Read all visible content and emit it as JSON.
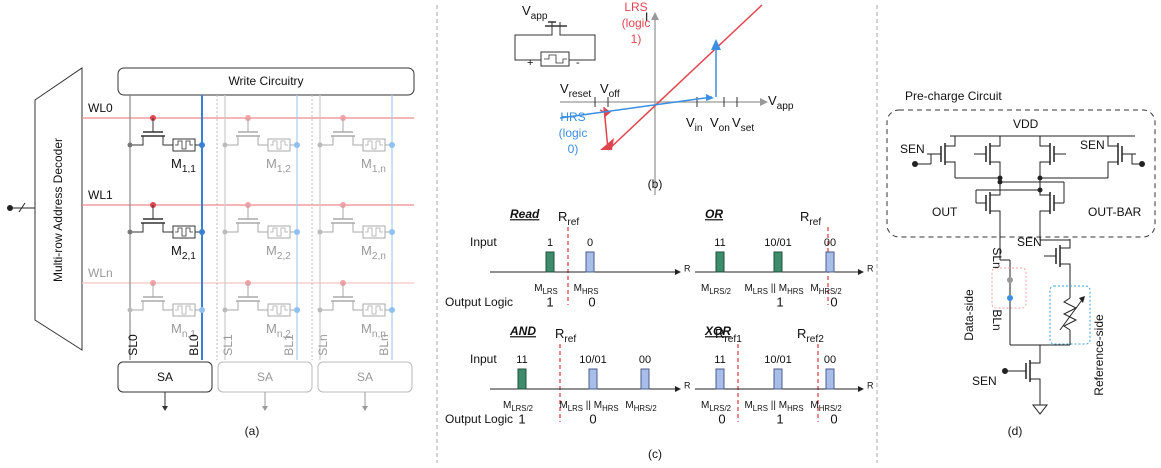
{
  "panel_a": {
    "write_circuitry": "Write Circuitry",
    "decoder": "Multi-row Address Decoder",
    "word_lines": [
      "WL0",
      "WL1",
      "WLn"
    ],
    "cells": [
      [
        [
          "M",
          "1,1"
        ],
        [
          "M",
          "1,2"
        ],
        [
          "M",
          "1,n"
        ]
      ],
      [
        [
          "M",
          "2,1"
        ],
        [
          "M",
          "2,2"
        ],
        [
          "M",
          "2,n"
        ]
      ],
      [
        [
          "M",
          "n,1"
        ],
        [
          "M",
          "n,2"
        ],
        [
          "M",
          "n,n"
        ]
      ]
    ],
    "bit_lines": [
      [
        "SL0",
        "BL0"
      ],
      [
        "SL1",
        "BL1"
      ],
      [
        "SLn",
        "BLn"
      ]
    ],
    "sense_amps": [
      "SA",
      "SA",
      "SA"
    ],
    "caption": "(a)"
  },
  "panel_b": {
    "source": [
      "V",
      "app"
    ],
    "plus": "+",
    "minus": "-",
    "y_axis": "I",
    "x_axis": [
      "V",
      "app"
    ],
    "lrs": [
      "LRS",
      "(logic",
      "1)"
    ],
    "hrs": [
      "HRS",
      "(logic",
      "0)"
    ],
    "v_reset": [
      "V",
      "reset"
    ],
    "v_off": [
      "V",
      "off"
    ],
    "v_in": [
      "V",
      "in"
    ],
    "v_on": [
      "V",
      "on"
    ],
    "v_set": [
      "V",
      "set"
    ],
    "caption": "(b)"
  },
  "panel_c": {
    "ops": [
      {
        "title": "Read",
        "thresholds": [
          [
            "R",
            "ref"
          ]
        ],
        "row_label": "Input",
        "inputs": [
          "1",
          "0"
        ],
        "axis": "R",
        "states": [
          [
            "M",
            "LRS"
          ],
          [
            "M",
            "HRS"
          ]
        ],
        "output_label": "Output Logic",
        "outputs": [
          "1",
          "0"
        ]
      },
      {
        "title": "OR",
        "thresholds": [
          [
            "R",
            "ref"
          ]
        ],
        "inputs": [
          "11",
          "10/01",
          "00"
        ],
        "axis": "R",
        "states": [
          [
            "M",
            "LRS/2"
          ],
          [
            "M",
            "LRS",
            " || M",
            "HRS"
          ],
          [
            "M",
            "HRS/2"
          ]
        ],
        "outputs": [
          "1",
          "0"
        ]
      },
      {
        "title": "AND",
        "thresholds": [
          [
            "R",
            "ref"
          ]
        ],
        "row_label": "Input",
        "inputs": [
          "11",
          "10/01",
          "00"
        ],
        "axis": "R",
        "states": [
          [
            "M",
            "LRS/2"
          ],
          [
            "M",
            "LRS",
            " || M",
            "HRS"
          ],
          [
            "M",
            "HRS/2"
          ]
        ],
        "output_label": "Output Logic",
        "outputs": [
          "1",
          "0"
        ]
      },
      {
        "title": "XOR",
        "thresholds": [
          [
            "R",
            "ref1"
          ],
          [
            "R",
            "ref2"
          ]
        ],
        "inputs": [
          "11",
          "10/01",
          "00"
        ],
        "axis": "R",
        "states": [
          [
            "M",
            "LRS/2"
          ],
          [
            "M",
            "LRS",
            " || M",
            "HRS"
          ],
          [
            "M",
            "HRS/2"
          ]
        ],
        "outputs": [
          "0",
          "1",
          "0"
        ]
      }
    ],
    "caption": "(c)"
  },
  "panel_d": {
    "title": "Pre-charge Circuit",
    "vdd": "VDD",
    "sen": [
      "SEN",
      "SEN",
      "SEN",
      "SEN"
    ],
    "out": "OUT",
    "out_bar": "OUT-BAR",
    "sl": "SLn",
    "bl": "BLn",
    "data_side": "Data-side",
    "reference_side": "Reference-side",
    "caption": "(d)"
  }
}
